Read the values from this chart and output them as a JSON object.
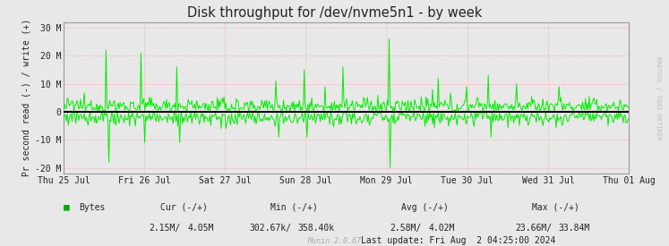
{
  "title": "Disk throughput for /dev/nvme5n1 - by week",
  "ylabel": "Pr second read (-) / write (+)",
  "background_color": "#E8E8E8",
  "plot_bg_color": "#E8E8E8",
  "grid_h_color": "#FF9999",
  "grid_v_color": "#FF9999",
  "line_color": "#00EE00",
  "zero_line_color": "#000000",
  "ylim": [
    -22000000,
    32000000
  ],
  "yticks": [
    -20000000,
    -10000000,
    0,
    10000000,
    20000000,
    30000000
  ],
  "ytick_labels": [
    "-20 M",
    "-10 M",
    "0",
    "10 M",
    "20 M",
    "30 M"
  ],
  "x_labels": [
    "Thu 25 Jul",
    "Fri 26 Jul",
    "Sat 27 Jul",
    "Sun 28 Jul",
    "Mon 29 Jul",
    "Tue 30 Jul",
    "Wed 31 Jul",
    "Thu 01 Aug"
  ],
  "legend_label": "Bytes",
  "legend_color": "#00AA00",
  "cur_label": "Cur (-/+)",
  "min_label": "Min (-/+)",
  "avg_label": "Avg (-/+)",
  "max_label": "Max (-/+)",
  "cur_val": "2.15M/",
  "cur_val2": "4.05M",
  "min_val": "302.67k/",
  "min_val2": "358.40k",
  "avg_val": "2.58M/",
  "avg_val2": "4.02M",
  "max_val": "23.66M/",
  "max_val2": "33.84M",
  "last_update": "Last update: Fri Aug  2 04:25:00 2024",
  "munin_version": "Munin 2.0.67",
  "border_color": "#AAAAAA",
  "watermark": "RRDTOOL / TOBI OETIKER",
  "n_points": 600
}
